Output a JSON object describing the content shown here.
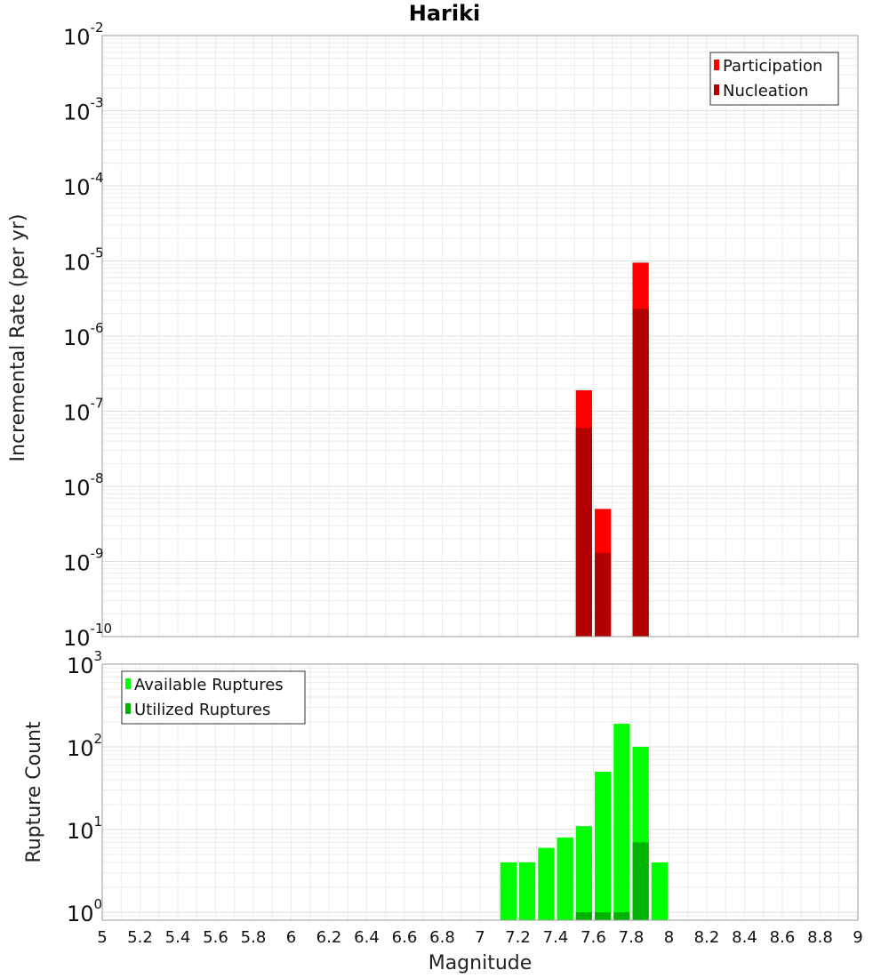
{
  "chart_data": [
    {
      "type": "bar",
      "title": "Hariki",
      "xlabel": "Magnitude",
      "ylabel": "Incremental Rate (per yr)",
      "yscale": "log",
      "xlim": [
        5,
        9
      ],
      "ylim": [
        1e-10,
        0.01
      ],
      "grid": true,
      "legend_position": "top-right",
      "x_ticks": [
        "5",
        "5.2",
        "5.4",
        "5.6",
        "5.8",
        "6",
        "6.2",
        "6.4",
        "6.6",
        "6.8",
        "7",
        "7.2",
        "7.4",
        "7.6",
        "7.8",
        "8",
        "8.2",
        "8.4",
        "8.6",
        "8.8",
        "9"
      ],
      "y_ticks": [
        {
          "base": "10",
          "exp": "-10",
          "value": 1e-10
        },
        {
          "base": "10",
          "exp": "-9",
          "value": 1e-09
        },
        {
          "base": "10",
          "exp": "-8",
          "value": 1e-08
        },
        {
          "base": "10",
          "exp": "-7",
          "value": 1e-07
        },
        {
          "base": "10",
          "exp": "-6",
          "value": 1e-06
        },
        {
          "base": "10",
          "exp": "-5",
          "value": 1e-05
        },
        {
          "base": "10",
          "exp": "-4",
          "value": 0.0001
        },
        {
          "base": "10",
          "exp": "-3",
          "value": 0.001
        },
        {
          "base": "10",
          "exp": "-2",
          "value": 0.01
        }
      ],
      "bin_width": 0.1,
      "series": [
        {
          "name": "Participation",
          "color": "#ff0000",
          "x": [
            7.55,
            7.65,
            7.85
          ],
          "values": [
            1.9e-07,
            5e-09,
            9.5e-06
          ]
        },
        {
          "name": "Nucleation",
          "color": "#b30000",
          "x": [
            7.55,
            7.65,
            7.85
          ],
          "values": [
            6e-08,
            1.3e-09,
            2.3e-06
          ]
        }
      ]
    },
    {
      "type": "bar",
      "xlabel": "Magnitude",
      "ylabel": "Rupture Count",
      "yscale": "log",
      "xlim": [
        5,
        9
      ],
      "ylim": [
        0.8,
        1000
      ],
      "grid": true,
      "legend_position": "top-left",
      "x_ticks": [
        "5",
        "5.2",
        "5.4",
        "5.6",
        "5.8",
        "6",
        "6.2",
        "6.4",
        "6.6",
        "6.8",
        "7",
        "7.2",
        "7.4",
        "7.6",
        "7.8",
        "8",
        "8.2",
        "8.4",
        "8.6",
        "8.8",
        "9"
      ],
      "y_ticks": [
        {
          "base": "10",
          "exp": "0",
          "value": 1
        },
        {
          "base": "10",
          "exp": "1",
          "value": 10
        },
        {
          "base": "10",
          "exp": "2",
          "value": 100
        },
        {
          "base": "10",
          "exp": "3",
          "value": 1000
        }
      ],
      "bin_width": 0.1,
      "series": [
        {
          "name": "Available Ruptures",
          "color": "#00ff00",
          "x": [
            7.15,
            7.25,
            7.35,
            7.45,
            7.55,
            7.65,
            7.75,
            7.85,
            7.95
          ],
          "values": [
            4,
            4,
            6,
            8,
            11,
            50,
            190,
            100,
            4
          ]
        },
        {
          "name": "Utilized Ruptures",
          "color": "#00b300",
          "x": [
            7.55,
            7.65,
            7.75,
            7.85
          ],
          "values": [
            1,
            1,
            1,
            7
          ]
        }
      ]
    }
  ]
}
